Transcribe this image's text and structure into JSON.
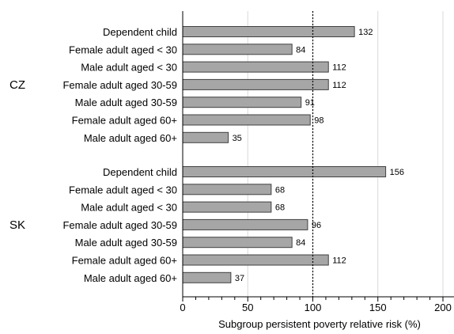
{
  "chart_data": {
    "type": "bar",
    "orientation": "horizontal",
    "title": "",
    "xlabel": "Subgroup persistent poverty relative risk (%)",
    "ylabel": "",
    "xlim": [
      0,
      210
    ],
    "xticks": [
      "0",
      "50",
      "100",
      "150",
      "200"
    ],
    "minor_tick_step": 10,
    "grid": true,
    "reference_line": 100,
    "bar_color": "#a6a6a6",
    "bar_edge_color": "#404040",
    "grid_color": "#d9d9d9",
    "groups": [
      {
        "name": "CZ",
        "categories": [
          "Dependent child",
          "Female adult aged < 30",
          "Male adult aged < 30",
          "Female adult aged 30-59",
          "Male adult aged 30-59",
          "Female adult aged 60+",
          "Male adult aged 60+"
        ],
        "values": [
          132,
          84,
          112,
          112,
          91,
          98,
          35
        ]
      },
      {
        "name": "SK",
        "categories": [
          "Dependent child",
          "Female adult aged < 30",
          "Male adult aged < 30",
          "Female adult aged 30-59",
          "Male adult aged 30-59",
          "Female adult aged 60+",
          "Male adult aged 60+"
        ],
        "values": [
          156,
          68,
          68,
          96,
          84,
          112,
          37
        ]
      }
    ]
  }
}
